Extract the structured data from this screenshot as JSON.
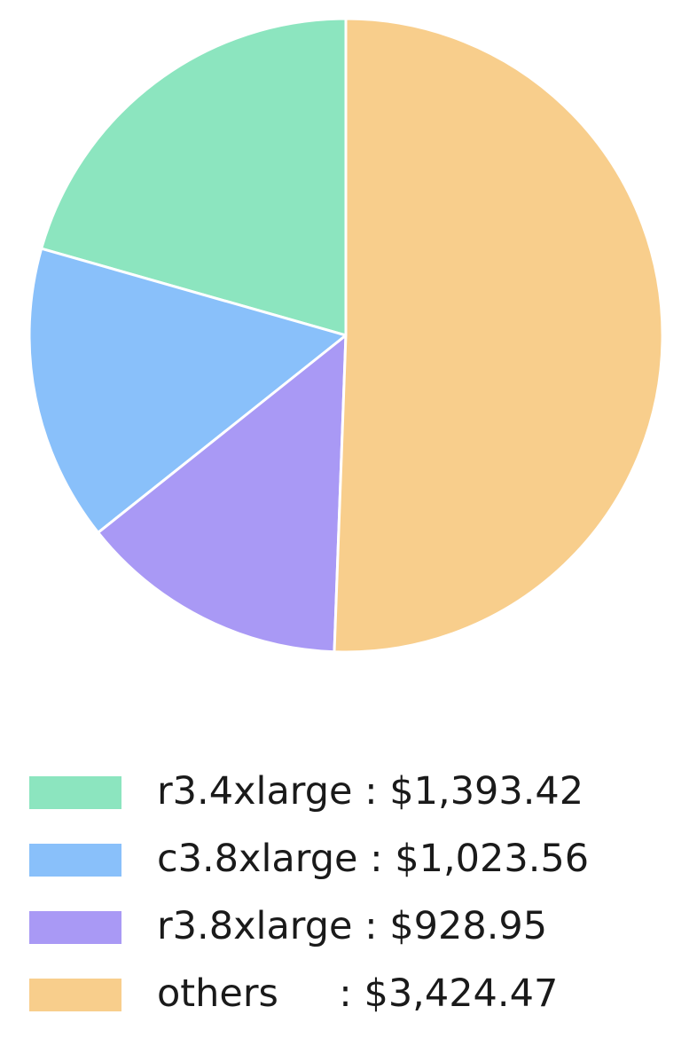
{
  "chart_data": {
    "type": "pie",
    "title": "",
    "start_angle": 90,
    "direction": "counterclockwise",
    "legend_position": "bottom-left",
    "wedge_border_color": "#ffffff",
    "series": [
      {
        "label": "r3.4xlarge",
        "value": 1393.42,
        "color": "#8CE5BF",
        "display": "r3.4xlarge : $1,393.42"
      },
      {
        "label": "c3.8xlarge",
        "value": 1023.56,
        "color": "#89C0FA",
        "display": "c3.8xlarge : $1,023.56"
      },
      {
        "label": "r3.8xlarge",
        "value": 928.95,
        "color": "#A999F5",
        "display": "r3.8xlarge : $928.95"
      },
      {
        "label": "others",
        "value": 3424.47,
        "color": "#F8CE8C",
        "display": "others     : $3,424.47"
      }
    ]
  }
}
